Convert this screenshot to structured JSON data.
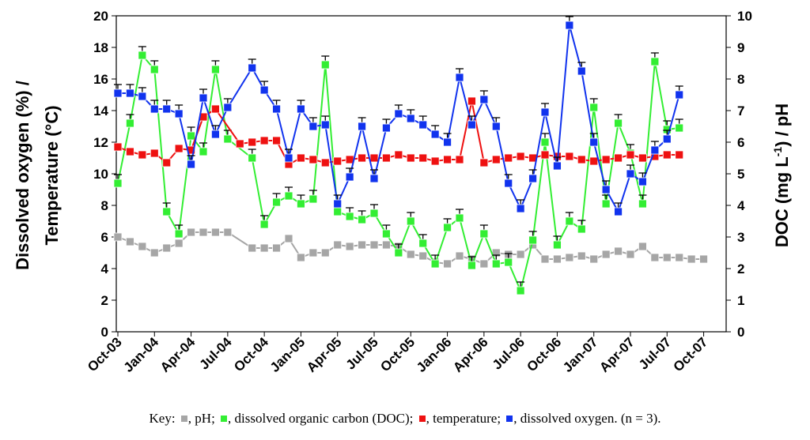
{
  "chart_data": {
    "type": "line",
    "left_axis": {
      "title_line1": "Dissolved oxygen (%) /",
      "title_line2": "Temperature (°C)",
      "ylim": [
        0,
        20
      ],
      "ticks": [
        "0",
        "2",
        "4",
        "6",
        "8",
        "10",
        "12",
        "14",
        "16",
        "18",
        "20"
      ]
    },
    "right_axis": {
      "title_pre": "DOC (mg L",
      "title_sup": "-1",
      "title_post": ") / pH",
      "ylim": [
        0,
        10
      ],
      "ticks": [
        "0",
        "1",
        "2",
        "3",
        "4",
        "5",
        "6",
        "7",
        "8",
        "9",
        "10"
      ]
    },
    "x_axis": {
      "xlim": [
        0,
        49
      ],
      "ticks": [
        {
          "label": "Oct-03",
          "x": 0
        },
        {
          "label": "Jan-04",
          "x": 3
        },
        {
          "label": "Apr-04",
          "x": 6
        },
        {
          "label": "Jul-04",
          "x": 9
        },
        {
          "label": "Oct-04",
          "x": 12
        },
        {
          "label": "Jan-05",
          "x": 15
        },
        {
          "label": "Apr-05",
          "x": 18
        },
        {
          "label": "Jul-05",
          "x": 21
        },
        {
          "label": "Oct-05",
          "x": 24
        },
        {
          "label": "Jan-06",
          "x": 27
        },
        {
          "label": "Apr-06",
          "x": 30
        },
        {
          "label": "Jul-06",
          "x": 33
        },
        {
          "label": "Oct-06",
          "x": 36
        },
        {
          "label": "Jan-07",
          "x": 39
        },
        {
          "label": "Apr-07",
          "x": 42
        },
        {
          "label": "Jul-07",
          "x": 45
        },
        {
          "label": "Oct-07",
          "x": 48
        }
      ]
    },
    "series": [
      {
        "name": "pH",
        "axis": "right",
        "color": "#a6a6a6",
        "error_bars": false,
        "points": [
          [
            0,
            3.0
          ],
          [
            1,
            2.85
          ],
          [
            2,
            2.7
          ],
          [
            3,
            2.5
          ],
          [
            4,
            2.65
          ],
          [
            5,
            2.8
          ],
          [
            6,
            3.15
          ],
          [
            7,
            3.15
          ],
          [
            8,
            3.15
          ],
          [
            9,
            3.15
          ],
          [
            11,
            2.65
          ],
          [
            12,
            2.65
          ],
          [
            13,
            2.65
          ],
          [
            14,
            2.95
          ],
          [
            15,
            2.35
          ],
          [
            16,
            2.5
          ],
          [
            17,
            2.5
          ],
          [
            18,
            2.75
          ],
          [
            19,
            2.7
          ],
          [
            20,
            2.75
          ],
          [
            21,
            2.75
          ],
          [
            22,
            2.75
          ],
          [
            23,
            2.7
          ],
          [
            24,
            2.45
          ],
          [
            25,
            2.4
          ],
          [
            26,
            2.2
          ],
          [
            27,
            2.15
          ],
          [
            28,
            2.4
          ],
          [
            29,
            2.3
          ],
          [
            30,
            2.15
          ],
          [
            31,
            2.5
          ],
          [
            32,
            2.45
          ],
          [
            33,
            2.45
          ],
          [
            34,
            2.75
          ],
          [
            35,
            2.3
          ],
          [
            36,
            2.3
          ],
          [
            37,
            2.35
          ],
          [
            38,
            2.4
          ],
          [
            39,
            2.3
          ],
          [
            40,
            2.45
          ],
          [
            41,
            2.55
          ],
          [
            42,
            2.45
          ],
          [
            43,
            2.7
          ],
          [
            44,
            2.35
          ],
          [
            45,
            2.35
          ],
          [
            46,
            2.35
          ],
          [
            47,
            2.3
          ],
          [
            48,
            2.3
          ]
        ]
      },
      {
        "name": "DOC",
        "axis": "right",
        "color": "#33ee33",
        "error_bars": true,
        "points": [
          [
            0,
            4.7
          ],
          [
            1,
            6.6
          ],
          [
            2,
            8.75
          ],
          [
            3,
            8.3
          ],
          [
            4,
            3.8
          ],
          [
            5,
            3.1
          ],
          [
            6,
            6.2
          ],
          [
            7,
            5.7
          ],
          [
            8,
            8.3
          ],
          [
            9,
            6.1
          ],
          [
            11,
            5.5
          ],
          [
            12,
            3.4
          ],
          [
            13,
            4.1
          ],
          [
            14,
            4.3
          ],
          [
            15,
            4.05
          ],
          [
            16,
            4.2
          ],
          [
            17,
            8.45
          ],
          [
            18,
            3.8
          ],
          [
            19,
            3.65
          ],
          [
            20,
            3.55
          ],
          [
            21,
            3.75
          ],
          [
            22,
            3.1
          ],
          [
            23,
            2.5
          ],
          [
            24,
            3.5
          ],
          [
            25,
            2.8
          ],
          [
            26,
            2.15
          ],
          [
            27,
            3.3
          ],
          [
            28,
            3.6
          ],
          [
            29,
            2.1
          ],
          [
            30,
            3.1
          ],
          [
            31,
            2.15
          ],
          [
            32,
            2.2
          ],
          [
            33,
            1.3
          ],
          [
            34,
            2.9
          ],
          [
            35,
            6.0
          ],
          [
            36,
            2.75
          ],
          [
            37,
            3.5
          ],
          [
            38,
            3.25
          ],
          [
            39,
            7.1
          ],
          [
            40,
            4.05
          ],
          [
            41,
            6.6
          ],
          [
            42,
            5.65
          ],
          [
            43,
            4.05
          ],
          [
            44,
            8.55
          ],
          [
            45,
            6.4
          ],
          [
            46,
            6.45
          ]
        ]
      },
      {
        "name": "temperature",
        "axis": "left",
        "color": "#ee1111",
        "error_bars": false,
        "points": [
          [
            0,
            11.7
          ],
          [
            1,
            11.4
          ],
          [
            2,
            11.2
          ],
          [
            3,
            11.3
          ],
          [
            4,
            10.7
          ],
          [
            5,
            11.6
          ],
          [
            6,
            11.5
          ],
          [
            7,
            13.6
          ],
          [
            8,
            14.1
          ],
          [
            10,
            11.9
          ],
          [
            11,
            12.0
          ],
          [
            12,
            12.1
          ],
          [
            13,
            12.1
          ],
          [
            14,
            10.6
          ],
          [
            15,
            11.0
          ],
          [
            16,
            10.9
          ],
          [
            17,
            10.7
          ],
          [
            18,
            10.8
          ],
          [
            19,
            10.9
          ],
          [
            20,
            11.0
          ],
          [
            21,
            11.0
          ],
          [
            22,
            11.0
          ],
          [
            23,
            11.2
          ],
          [
            24,
            11.0
          ],
          [
            25,
            11.0
          ],
          [
            26,
            10.8
          ],
          [
            27,
            10.9
          ],
          [
            28,
            10.9
          ],
          [
            29,
            14.6
          ],
          [
            30,
            10.7
          ],
          [
            31,
            10.9
          ],
          [
            32,
            11.0
          ],
          [
            33,
            11.1
          ],
          [
            34,
            11.0
          ],
          [
            35,
            11.2
          ],
          [
            36,
            11.1
          ],
          [
            37,
            11.1
          ],
          [
            38,
            10.9
          ],
          [
            39,
            10.8
          ],
          [
            40,
            10.9
          ],
          [
            41,
            11.0
          ],
          [
            42,
            11.2
          ],
          [
            43,
            11.0
          ],
          [
            44,
            11.1
          ],
          [
            45,
            11.2
          ],
          [
            46,
            11.2
          ]
        ]
      },
      {
        "name": "dissolved oxygen",
        "axis": "left",
        "color": "#1133ee",
        "error_bars": true,
        "points": [
          [
            0,
            15.1
          ],
          [
            1,
            15.1
          ],
          [
            2,
            14.9
          ],
          [
            3,
            14.1
          ],
          [
            4,
            14.1
          ],
          [
            5,
            13.8
          ],
          [
            6,
            10.6
          ],
          [
            7,
            14.8
          ],
          [
            8,
            12.5
          ],
          [
            9,
            14.2
          ],
          [
            11,
            16.7
          ],
          [
            12,
            15.3
          ],
          [
            13,
            14.1
          ],
          [
            14,
            11.0
          ],
          [
            15,
            14.1
          ],
          [
            16,
            13.0
          ],
          [
            17,
            13.1
          ],
          [
            18,
            8.1
          ],
          [
            19,
            9.8
          ],
          [
            20,
            13.0
          ],
          [
            21,
            9.7
          ],
          [
            22,
            12.9
          ],
          [
            23,
            13.8
          ],
          [
            24,
            13.5
          ],
          [
            25,
            13.1
          ],
          [
            26,
            12.5
          ],
          [
            27,
            12.0
          ],
          [
            28,
            16.1
          ],
          [
            29,
            13.1
          ],
          [
            30,
            14.7
          ],
          [
            31,
            13.0
          ],
          [
            32,
            9.4
          ],
          [
            33,
            7.8
          ],
          [
            34,
            9.7
          ],
          [
            35,
            13.9
          ],
          [
            36,
            10.5
          ],
          [
            37,
            19.4
          ],
          [
            38,
            16.5
          ],
          [
            39,
            12.0
          ],
          [
            40,
            9.0
          ],
          [
            41,
            7.6
          ],
          [
            42,
            10.0
          ],
          [
            43,
            9.5
          ],
          [
            44,
            11.5
          ],
          [
            45,
            12.2
          ],
          [
            46,
            15.0
          ]
        ]
      }
    ]
  },
  "caption": {
    "key_label": "Key:",
    "items": [
      {
        "color": "#a6a6a6",
        "text": ", pH;"
      },
      {
        "color": "#33ee33",
        "text": ", dissolved organic carbon (DOC);"
      },
      {
        "color": "#ee1111",
        "text": ", temperature;"
      },
      {
        "color": "#1133ee",
        "text": ", dissolved oxygen. (n = 3)."
      }
    ]
  }
}
